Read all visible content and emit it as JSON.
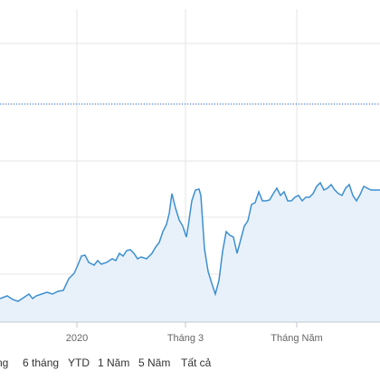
{
  "chart_data": {
    "type": "area",
    "x_tick_labels": [
      "2020",
      "Tháng 3",
      "Tháng Năm"
    ],
    "reference_line": {
      "style": "dotted",
      "color": "#1a73e8"
    },
    "series": [
      {
        "color": "#3c8fd1",
        "fill": "#e8f1fa",
        "points": [
          [
            0,
            330
          ],
          [
            8,
            327
          ],
          [
            14,
            331
          ],
          [
            20,
            333
          ],
          [
            26,
            329
          ],
          [
            32,
            325
          ],
          [
            36,
            330
          ],
          [
            40,
            327
          ],
          [
            46,
            325
          ],
          [
            52,
            323
          ],
          [
            58,
            325
          ],
          [
            64,
            322
          ],
          [
            70,
            321
          ],
          [
            76,
            308
          ],
          [
            82,
            302
          ],
          [
            86,
            293
          ],
          [
            90,
            283
          ],
          [
            94,
            282
          ],
          [
            98,
            290
          ],
          [
            104,
            293
          ],
          [
            108,
            288
          ],
          [
            112,
            292
          ],
          [
            118,
            290
          ],
          [
            124,
            286
          ],
          [
            128,
            288
          ],
          [
            132,
            280
          ],
          [
            136,
            283
          ],
          [
            140,
            277
          ],
          [
            144,
            276
          ],
          [
            148,
            280
          ],
          [
            152,
            286
          ],
          [
            156,
            284
          ],
          [
            162,
            286
          ],
          [
            168,
            280
          ],
          [
            172,
            273
          ],
          [
            176,
            268
          ],
          [
            180,
            256
          ],
          [
            184,
            248
          ],
          [
            187,
            236
          ],
          [
            190,
            214
          ],
          [
            194,
            230
          ],
          [
            198,
            243
          ],
          [
            202,
            250
          ],
          [
            206,
            262
          ],
          [
            208,
            250
          ],
          [
            212,
            222
          ],
          [
            216,
            210
          ],
          [
            220,
            209
          ],
          [
            222,
            216
          ],
          [
            226,
            275
          ],
          [
            230,
            300
          ],
          [
            234,
            313
          ],
          [
            238,
            325
          ],
          [
            242,
            310
          ],
          [
            246,
            278
          ],
          [
            250,
            256
          ],
          [
            254,
            260
          ],
          [
            258,
            262
          ],
          [
            262,
            280
          ],
          [
            266,
            265
          ],
          [
            270,
            250
          ],
          [
            274,
            244
          ],
          [
            278,
            226
          ],
          [
            282,
            224
          ],
          [
            286,
            212
          ],
          [
            290,
            222
          ],
          [
            294,
            222
          ],
          [
            298,
            221
          ],
          [
            302,
            214
          ],
          [
            306,
            208
          ],
          [
            310,
            216
          ],
          [
            314,
            212
          ],
          [
            318,
            222
          ],
          [
            322,
            222
          ],
          [
            326,
            218
          ],
          [
            330,
            216
          ],
          [
            334,
            222
          ],
          [
            338,
            218
          ],
          [
            342,
            218
          ],
          [
            346,
            214
          ],
          [
            350,
            206
          ],
          [
            354,
            202
          ],
          [
            358,
            210
          ],
          [
            362,
            208
          ],
          [
            366,
            204
          ],
          [
            370,
            210
          ],
          [
            374,
            214
          ],
          [
            378,
            216
          ],
          [
            382,
            208
          ],
          [
            386,
            204
          ],
          [
            390,
            216
          ],
          [
            394,
            222
          ],
          [
            398,
            215
          ],
          [
            402,
            206
          ],
          [
            406,
            208
          ],
          [
            410,
            210
          ],
          [
            414,
            210
          ],
          [
            420,
            210
          ]
        ]
      }
    ]
  },
  "range_buttons": [
    "ng",
    "6 tháng",
    "YTD",
    "1 Năm",
    "5 Năm",
    "Tất cả"
  ]
}
